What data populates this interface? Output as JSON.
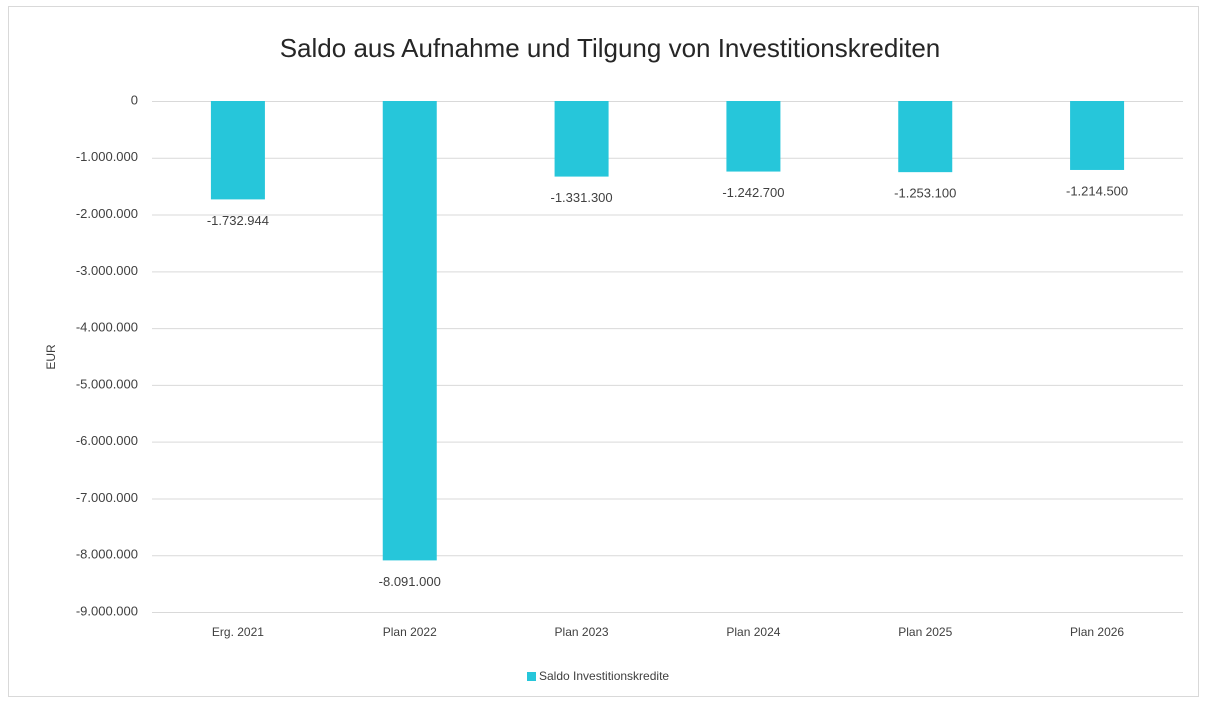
{
  "chart_data": {
    "type": "bar",
    "title": "Saldo aus Aufnahme und Tilgung von Investitionskrediten",
    "ylabel": "EUR",
    "categories": [
      "Erg. 2021",
      "Plan 2022",
      "Plan 2023",
      "Plan 2024",
      "Plan 2025",
      "Plan 2026"
    ],
    "series": [
      {
        "name": "Saldo Investitionskredite",
        "color": "#26c6da",
        "values": [
          -1732944,
          -8091000,
          -1331300,
          -1242700,
          -1253100,
          -1214500
        ],
        "value_labels": [
          "-1.732.944",
          "-8.091.000",
          "-1.331.300",
          "-1.242.700",
          "-1.253.100",
          "-1.214.500"
        ]
      }
    ],
    "ylim": [
      -9000000,
      0
    ],
    "yticks": [
      0,
      {
        "value": -1000000,
        "label": "-1.000.000"
      },
      {
        "value": -2000000,
        "label": "-2.000.000"
      },
      {
        "value": -3000000,
        "label": "-3.000.000"
      },
      {
        "value": -4000000,
        "label": "-4.000.000"
      },
      {
        "value": -5000000,
        "label": "-5.000.000"
      },
      {
        "value": -6000000,
        "label": "-6.000.000"
      },
      {
        "value": -7000000,
        "label": "-7.000.000"
      },
      {
        "value": -8000000,
        "label": "-8.000.000"
      },
      {
        "value": -9000000,
        "label": "-9.000.000"
      }
    ],
    "grid": true,
    "legend": "bottom"
  }
}
